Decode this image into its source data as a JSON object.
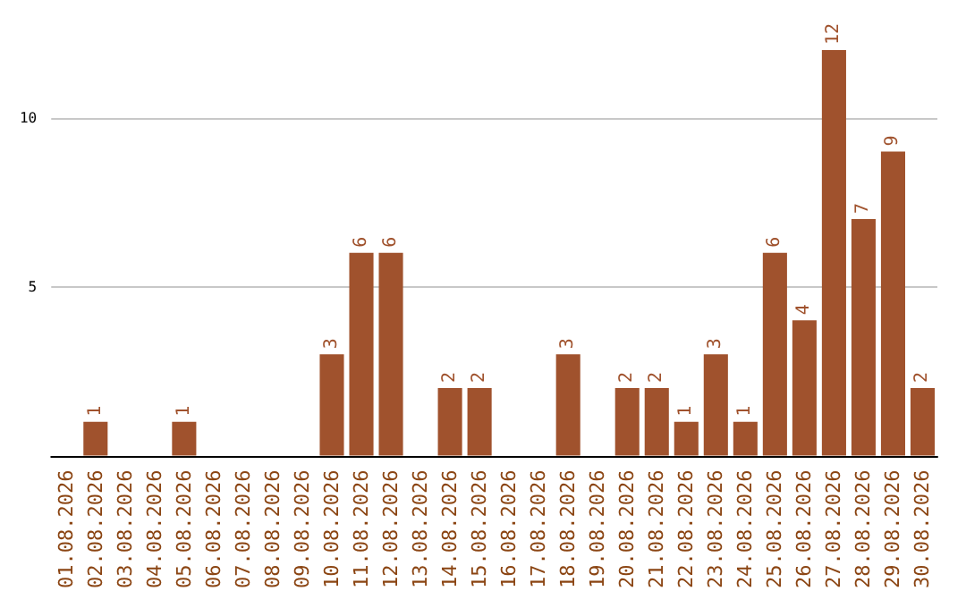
{
  "chart_data": {
    "type": "bar",
    "categories": [
      "01.08.2026",
      "02.08.2026",
      "03.08.2026",
      "04.08.2026",
      "05.08.2026",
      "06.08.2026",
      "07.08.2026",
      "08.08.2026",
      "09.08.2026",
      "10.08.2026",
      "11.08.2026",
      "12.08.2026",
      "13.08.2026",
      "14.08.2026",
      "15.08.2026",
      "16.08.2026",
      "17.08.2026",
      "18.08.2026",
      "19.08.2026",
      "20.08.2026",
      "21.08.2026",
      "22.08.2026",
      "23.08.2026",
      "24.08.2026",
      "25.08.2026",
      "26.08.2026",
      "27.08.2026",
      "28.08.2026",
      "29.08.2026",
      "30.08.2026"
    ],
    "values": [
      0,
      1,
      0,
      0,
      1,
      0,
      0,
      0,
      0,
      3,
      6,
      6,
      0,
      2,
      2,
      0,
      0,
      3,
      0,
      2,
      2,
      1,
      3,
      1,
      6,
      4,
      12,
      7,
      9,
      2
    ],
    "value_labels": [
      null,
      "1",
      null,
      null,
      "1",
      null,
      null,
      null,
      null,
      "3",
      "6",
      "6",
      null,
      "2",
      "2",
      null,
      null,
      "3",
      null,
      "2",
      "2",
      "1",
      "3",
      "1",
      "6",
      "4",
      "12",
      "7",
      "9",
      "2"
    ],
    "color": "#a0522d",
    "ylim": [
      0,
      12
    ],
    "yticks": [
      5,
      10
    ],
    "grid": "y"
  }
}
